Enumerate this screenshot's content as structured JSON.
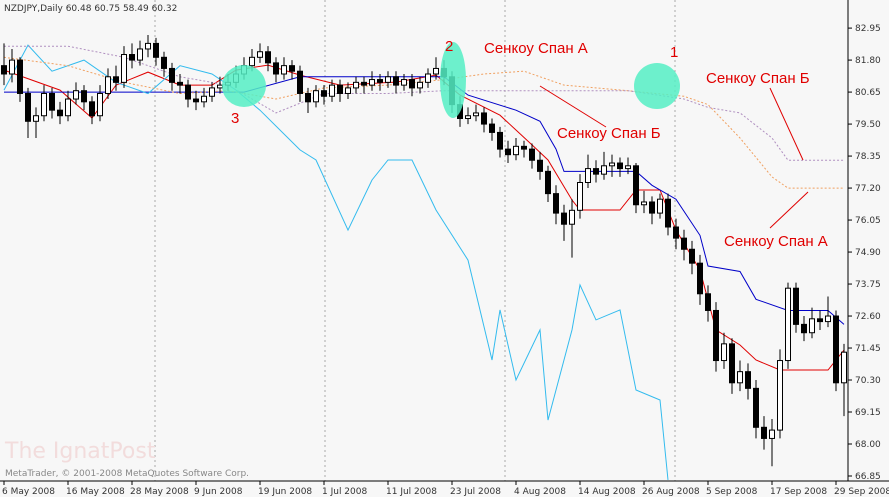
{
  "chart_data": {
    "type": "candlestick",
    "header": "NZDJPY,Daily  60.48 60.75 58.49 60.32",
    "watermark": "The IgnatPost",
    "copyright": "MetaTrader, © 2001-2008 MetaQuotes Software Corp.",
    "annotations": [
      "Сенкоу Спан А",
      "1",
      "2",
      "Сенкоу Спан Б",
      "Сенкоу Спан Б",
      "3",
      "Сенкоу Спан А"
    ],
    "ylim": [
      66.67,
      83.96
    ],
    "yticks": [
      82.95,
      {
        "value": 81.8,
        "label": "81.80"
      },
      80.65,
      {
        "value": 79.5,
        "label": "79.50"
      },
      78.35,
      {
        "value": 77.2,
        "label": "77.20"
      },
      76.05,
      {
        "value": 74.9,
        "label": "74.90"
      },
      73.75,
      {
        "value": 72.6,
        "label": "72.60"
      },
      71.45,
      {
        "value": 70.3,
        "label": "70.30"
      },
      69.15,
      {
        "value": 68,
        "label": "68.00"
      },
      66.85
    ],
    "categories": [
      "6 May 2008",
      null,
      null,
      null,
      null,
      null,
      null,
      null,
      "16 May 2008",
      null,
      null,
      null,
      null,
      null,
      null,
      null,
      "28 May 2008",
      null,
      null,
      null,
      null,
      null,
      null,
      null,
      "9 Jun 2008",
      null,
      null,
      null,
      null,
      null,
      null,
      null,
      "19 Jun 2008",
      null,
      null,
      null,
      null,
      null,
      null,
      null,
      "1 Jul 2008",
      null,
      null,
      null,
      null,
      null,
      null,
      null,
      "11 Jul 2008",
      null,
      null,
      null,
      null,
      null,
      null,
      null,
      "23 Jul 2008",
      null,
      null,
      null,
      null,
      null,
      null,
      null,
      "4 Aug 2008",
      null,
      null,
      null,
      null,
      null,
      null,
      null,
      "14 Aug 2008",
      null,
      null,
      null,
      null,
      null,
      null,
      null,
      "26 Aug 2008",
      null,
      null,
      null,
      null,
      null,
      null,
      null,
      "5 Sep 2008",
      null,
      null,
      null,
      null,
      null,
      null,
      null,
      "17 Sep 2008",
      null,
      null,
      null,
      null,
      null,
      null,
      null,
      "29 Sep 2008",
      null
    ],
    "candles": [
      [
        81.6,
        82.4,
        80.9,
        81.3
      ],
      [
        81.3,
        82.2,
        81.0,
        81.8
      ],
      [
        81.8,
        81.9,
        80.3,
        80.6
      ],
      [
        80.6,
        80.8,
        79.0,
        79.6
      ],
      [
        79.6,
        80.1,
        79.0,
        79.8
      ],
      [
        79.8,
        80.9,
        79.6,
        80.6
      ],
      [
        80.6,
        80.8,
        79.7,
        80.0
      ],
      [
        80.0,
        80.3,
        79.5,
        79.8
      ],
      [
        79.8,
        80.7,
        79.6,
        80.4
      ],
      [
        80.4,
        81.0,
        80.2,
        80.7
      ],
      [
        80.7,
        80.9,
        80.0,
        80.3
      ],
      [
        80.3,
        80.5,
        79.5,
        79.8
      ],
      [
        79.8,
        80.9,
        79.6,
        80.6
      ],
      [
        80.6,
        81.5,
        80.4,
        81.2
      ],
      [
        81.2,
        81.6,
        80.7,
        81.0
      ],
      [
        81.0,
        82.3,
        80.8,
        82.0
      ],
      [
        82.0,
        82.4,
        81.5,
        81.8
      ],
      [
        81.8,
        82.5,
        81.6,
        82.2
      ],
      [
        82.2,
        82.7,
        81.9,
        82.4
      ],
      [
        82.4,
        82.6,
        81.6,
        81.9
      ],
      [
        81.9,
        82.1,
        81.2,
        81.5
      ],
      [
        81.5,
        81.7,
        80.7,
        81.0
      ],
      [
        81.0,
        81.3,
        80.6,
        80.9
      ],
      [
        80.9,
        81.1,
        80.1,
        80.4
      ],
      [
        80.4,
        80.7,
        80.0,
        80.3
      ],
      [
        80.3,
        80.8,
        80.1,
        80.5
      ],
      [
        80.5,
        81.0,
        80.3,
        80.8
      ],
      [
        80.8,
        81.2,
        80.6,
        80.9
      ],
      [
        80.9,
        81.3,
        80.7,
        81.0
      ],
      [
        81.0,
        81.6,
        80.8,
        81.3
      ],
      [
        81.3,
        81.9,
        81.1,
        81.6
      ],
      [
        81.6,
        82.2,
        81.4,
        81.9
      ],
      [
        81.9,
        82.4,
        81.7,
        82.1
      ],
      [
        82.1,
        82.3,
        81.4,
        81.7
      ],
      [
        81.7,
        81.9,
        81.0,
        81.3
      ],
      [
        81.3,
        81.9,
        81.1,
        81.6
      ],
      [
        81.6,
        81.8,
        81.1,
        81.4
      ],
      [
        81.4,
        81.6,
        80.3,
        80.6
      ],
      [
        80.6,
        80.8,
        79.9,
        80.3
      ],
      [
        80.3,
        80.9,
        80.1,
        80.7
      ],
      [
        80.7,
        80.9,
        80.2,
        80.5
      ],
      [
        80.5,
        81.1,
        80.3,
        80.9
      ],
      [
        80.9,
        81.1,
        80.3,
        80.6
      ],
      [
        80.6,
        81.0,
        80.4,
        80.8
      ],
      [
        80.8,
        81.2,
        80.6,
        81.0
      ],
      [
        81.0,
        81.2,
        80.6,
        80.9
      ],
      [
        80.9,
        81.4,
        80.7,
        81.1
      ],
      [
        81.1,
        81.3,
        80.7,
        81.0
      ],
      [
        81.0,
        81.4,
        80.8,
        81.2
      ],
      [
        81.2,
        81.4,
        80.6,
        80.9
      ],
      [
        80.9,
        81.3,
        80.7,
        81.1
      ],
      [
        81.1,
        81.3,
        80.5,
        80.8
      ],
      [
        80.8,
        81.2,
        80.6,
        81.0
      ],
      [
        81.0,
        81.5,
        80.8,
        81.3
      ],
      [
        81.3,
        81.9,
        81.1,
        81.5
      ],
      [
        81.5,
        81.8,
        80.9,
        81.2
      ],
      [
        81.2,
        81.4,
        79.9,
        80.2
      ],
      [
        80.2,
        80.5,
        79.4,
        79.7
      ],
      [
        79.7,
        80.1,
        79.5,
        79.8
      ],
      [
        79.8,
        80.2,
        79.6,
        79.9
      ],
      [
        79.9,
        80.1,
        79.2,
        79.5
      ],
      [
        79.5,
        79.7,
        78.9,
        79.2
      ],
      [
        79.2,
        79.4,
        78.3,
        78.6
      ],
      [
        78.6,
        78.9,
        78.1,
        78.4
      ],
      [
        78.4,
        79.0,
        78.2,
        78.7
      ],
      [
        78.7,
        78.9,
        78.3,
        78.6
      ],
      [
        78.6,
        78.8,
        77.9,
        78.2
      ],
      [
        78.2,
        78.5,
        77.5,
        77.8
      ],
      [
        77.8,
        78.0,
        76.7,
        77.0
      ],
      [
        77.0,
        77.3,
        75.9,
        76.3
      ],
      [
        76.3,
        76.6,
        75.3,
        75.9
      ],
      [
        75.9,
        76.8,
        74.7,
        76.4
      ],
      [
        76.4,
        77.7,
        76.1,
        77.4
      ],
      [
        77.4,
        78.4,
        77.2,
        77.9
      ],
      [
        77.9,
        78.2,
        77.4,
        77.7
      ],
      [
        77.7,
        78.5,
        77.5,
        78.0
      ],
      [
        78.0,
        78.4,
        77.6,
        78.1
      ],
      [
        78.1,
        78.3,
        77.6,
        77.9
      ],
      [
        77.9,
        78.3,
        77.7,
        78.0
      ],
      [
        78.0,
        78.1,
        76.3,
        76.6
      ],
      [
        76.6,
        77.1,
        76.3,
        76.7
      ],
      [
        76.7,
        76.9,
        75.9,
        76.3
      ],
      [
        76.3,
        77.0,
        76.1,
        76.8
      ],
      [
        76.8,
        77.0,
        75.5,
        75.8
      ],
      [
        75.8,
        76.1,
        75.0,
        75.4
      ],
      [
        75.4,
        75.7,
        74.6,
        75.0
      ],
      [
        75.0,
        75.3,
        74.1,
        74.5
      ],
      [
        74.5,
        74.8,
        73.0,
        73.4
      ],
      [
        73.4,
        73.7,
        72.4,
        72.8
      ],
      [
        72.8,
        73.1,
        70.6,
        71.0
      ],
      [
        71.0,
        72.0,
        70.7,
        71.6
      ],
      [
        71.6,
        71.8,
        69.8,
        70.2
      ],
      [
        70.2,
        71.0,
        69.9,
        70.6
      ],
      [
        70.6,
        70.9,
        69.6,
        70.0
      ],
      [
        70.0,
        70.3,
        68.2,
        68.6
      ],
      [
        68.6,
        69.0,
        67.8,
        68.2
      ],
      [
        68.2,
        68.9,
        67.2,
        68.5
      ],
      [
        68.5,
        71.4,
        68.2,
        71.0
      ],
      [
        71.0,
        73.8,
        70.7,
        73.6
      ],
      [
        73.6,
        73.8,
        72.0,
        72.3
      ],
      [
        72.3,
        72.6,
        71.7,
        72.0
      ],
      [
        72.0,
        72.9,
        71.8,
        72.5
      ],
      [
        72.5,
        72.8,
        72.1,
        72.4
      ],
      [
        72.4,
        73.3,
        72.2,
        72.6
      ],
      [
        72.6,
        72.8,
        69.9,
        70.2
      ],
      [
        70.2,
        71.6,
        69.0,
        71.3
      ]
    ],
    "series": [
      {
        "color": "#e00000",
        "x": [
          0,
          7,
          11,
          14,
          18,
          22,
          26,
          29,
          33,
          37,
          42,
          49,
          54,
          57,
          62,
          66,
          68,
          71,
          72,
          77,
          79,
          82,
          84,
          87,
          89,
          92,
          94,
          97,
          103,
          105
        ],
        "values": [
          81.44,
          80.72,
          79.72,
          80.9,
          81.37,
          80.9,
          80.9,
          81.44,
          81.62,
          81.26,
          80.9,
          81.01,
          81.26,
          80.54,
          79.82,
          78.75,
          78.21,
          76.77,
          76.41,
          76.41,
          77.13,
          77.13,
          75.69,
          74.25,
          72.1,
          71.56,
          71.02,
          70.66,
          70.66,
          71.38
        ]
      },
      {
        "color": "#0000c8",
        "x": [
          0,
          30,
          37,
          55,
          58,
          64,
          67,
          69,
          70,
          79,
          81,
          84,
          87,
          88,
          92,
          94,
          98,
          103,
          105
        ],
        "values": [
          80.65,
          80.65,
          81.2,
          81.2,
          80.54,
          80.0,
          79.6,
          78.6,
          77.8,
          77.8,
          77.3,
          76.8,
          75.5,
          74.4,
          74.2,
          73.2,
          72.8,
          72.8,
          72.3
        ]
      },
      {
        "color": "#33bbee",
        "x": [
          0,
          3,
          6,
          10,
          14,
          18,
          22,
          26,
          29,
          32,
          37,
          39,
          43,
          46,
          48,
          51,
          54,
          58,
          61,
          62,
          64,
          67,
          68,
          71,
          72,
          74,
          77,
          79,
          82,
          83
        ],
        "values": [
          80.72,
          82.34,
          81.4,
          81.8,
          81.0,
          80.6,
          81.6,
          81.3,
          80.72,
          80.0,
          78.57,
          78.21,
          75.69,
          77.49,
          78.21,
          78.21,
          76.41,
          74.61,
          71.02,
          72.82,
          70.3,
          72.1,
          68.86,
          72.1,
          73.72,
          72.46,
          72.82,
          69.94,
          69.58,
          66.71
        ]
      },
      {
        "color": "#f0a060",
        "dotted": true,
        "x": [
          0,
          8,
          15,
          22,
          28,
          34,
          40,
          48,
          55,
          60,
          65,
          70,
          78,
          85,
          88,
          92,
          96,
          98,
          105
        ],
        "values": [
          81.9,
          81.6,
          81.0,
          80.6,
          80.7,
          80.4,
          80.8,
          80.9,
          81.1,
          81.3,
          81.4,
          80.9,
          80.7,
          80.5,
          80.2,
          79.0,
          77.6,
          77.2,
          77.2
        ]
      },
      {
        "color": "#b090c0",
        "dotted": true,
        "x": [
          0,
          8,
          15,
          22,
          28,
          34,
          40,
          48,
          55,
          60,
          70,
          78,
          85,
          88,
          92,
          96,
          98,
          105
        ],
        "values": [
          82.3,
          82.3,
          81.9,
          81.2,
          80.9,
          79.9,
          80.6,
          80.6,
          80.7,
          80.7,
          80.7,
          80.7,
          80.4,
          80.1,
          79.9,
          79.0,
          78.2,
          78.2
        ]
      }
    ]
  }
}
